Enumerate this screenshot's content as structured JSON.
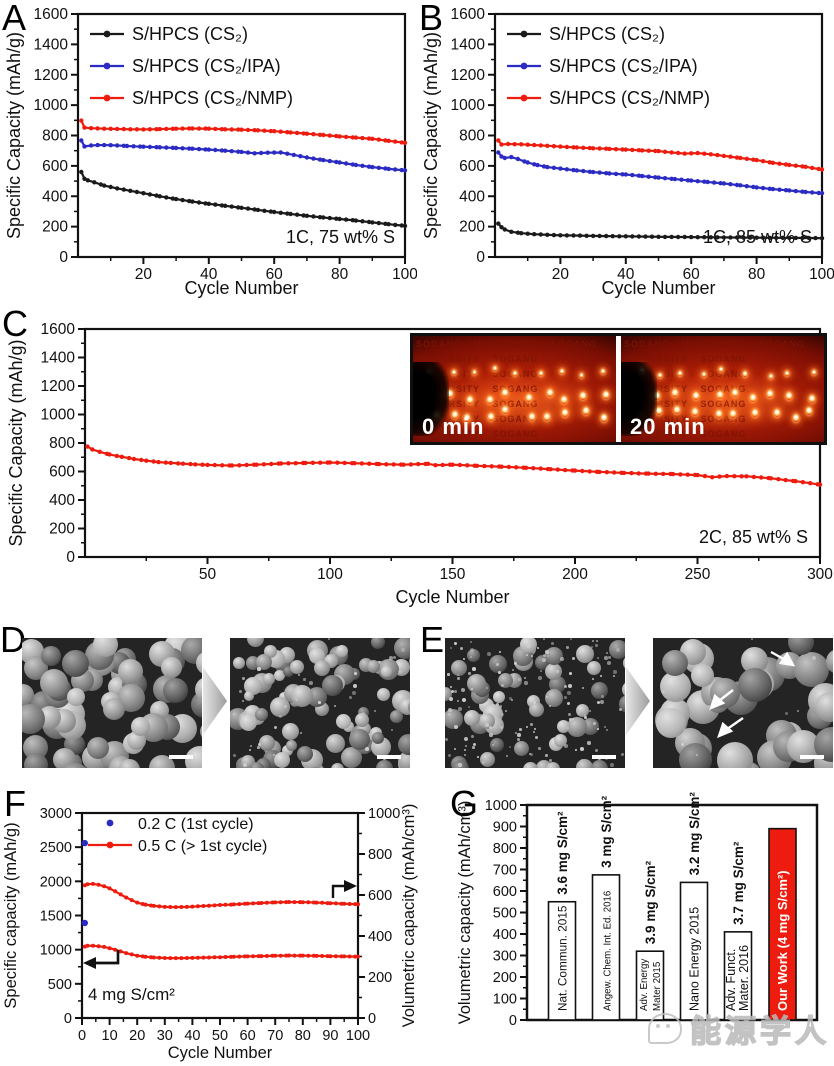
{
  "watermark": {
    "text": "能源学人"
  },
  "panels": {
    "d": {
      "label": "D"
    },
    "e": {
      "label": "E"
    }
  },
  "chart_data": [
    {
      "id": "A",
      "type": "line",
      "xlabel": "Cycle Number",
      "ylabel": "Specific Capacity (mAh/g)",
      "xlim": [
        0,
        100
      ],
      "ylim": [
        0,
        1600
      ],
      "xticks": [
        20,
        40,
        60,
        80,
        100
      ],
      "xminor": 10,
      "yticks": [
        0,
        200,
        400,
        600,
        800,
        1000,
        1200,
        1400,
        1600
      ],
      "yminor": 100,
      "annotation": "1C, 75 wt% S",
      "legend": [
        "S/HPCS (CS₂)",
        "S/HPCS (CS₂/IPA)",
        "S/HPCS (CS₂/NMP)"
      ],
      "series": [
        {
          "name": "S/HPCS (CS₂)",
          "color": "#1a1a1a",
          "x": [
            1,
            2,
            3,
            5,
            8,
            12,
            16,
            20,
            25,
            30,
            35,
            40,
            45,
            50,
            55,
            60,
            65,
            70,
            75,
            80,
            85,
            90,
            95,
            100
          ],
          "y": [
            560,
            515,
            505,
            492,
            470,
            452,
            436,
            420,
            400,
            381,
            365,
            350,
            337,
            324,
            310,
            296,
            283,
            271,
            260,
            250,
            240,
            228,
            216,
            205
          ]
        },
        {
          "name": "S/HPCS (CS₂/IPA)",
          "color": "#2b2bc4",
          "x": [
            1,
            2,
            4,
            6,
            10,
            15,
            20,
            25,
            30,
            35,
            40,
            45,
            50,
            54,
            58,
            62,
            66,
            70,
            75,
            80,
            85,
            90,
            95,
            100
          ],
          "y": [
            768,
            728,
            734,
            737,
            736,
            731,
            726,
            722,
            718,
            713,
            707,
            700,
            692,
            683,
            687,
            688,
            672,
            655,
            638,
            622,
            606,
            592,
            580,
            570
          ]
        },
        {
          "name": "S/HPCS (CS₂/NMP)",
          "color": "#ed1c0e",
          "x": [
            1,
            2,
            4,
            8,
            12,
            16,
            20,
            25,
            30,
            35,
            40,
            45,
            50,
            55,
            60,
            65,
            70,
            75,
            80,
            85,
            90,
            95,
            100
          ],
          "y": [
            898,
            852,
            848,
            845,
            843,
            841,
            840,
            842,
            845,
            846,
            845,
            841,
            838,
            834,
            828,
            820,
            812,
            803,
            794,
            786,
            778,
            765,
            752
          ]
        }
      ]
    },
    {
      "id": "B",
      "type": "line",
      "xlabel": "Cycle Number",
      "ylabel": "Specific Capacity (mAh/g)",
      "xlim": [
        0,
        100
      ],
      "ylim": [
        0,
        1600
      ],
      "xticks": [
        20,
        40,
        60,
        80,
        100
      ],
      "xminor": 10,
      "yticks": [
        0,
        200,
        400,
        600,
        800,
        1000,
        1200,
        1400,
        1600
      ],
      "yminor": 100,
      "annotation": "1C, 85 wt% S",
      "legend": [
        "S/HPCS (CS₂)",
        "S/HPCS (CS₂/IPA)",
        "S/HPCS (CS₂/NMP)"
      ],
      "series": [
        {
          "name": "S/HPCS (CS₂)",
          "color": "#1a1a1a",
          "x": [
            1,
            2,
            3,
            5,
            8,
            12,
            16,
            20,
            30,
            40,
            50,
            60,
            70,
            80,
            90,
            100
          ],
          "y": [
            220,
            196,
            181,
            166,
            157,
            150,
            146,
            143,
            139,
            136,
            133,
            131,
            129,
            127,
            126,
            124
          ]
        },
        {
          "name": "S/HPCS (CS₂/IPA)",
          "color": "#2b2bc4",
          "x": [
            1,
            2,
            3,
            5,
            7,
            10,
            13,
            16,
            20,
            25,
            30,
            35,
            40,
            45,
            50,
            55,
            60,
            65,
            70,
            75,
            80,
            85,
            90,
            95,
            100
          ],
          "y": [
            688,
            662,
            652,
            658,
            645,
            622,
            605,
            592,
            582,
            570,
            559,
            550,
            543,
            533,
            523,
            513,
            503,
            494,
            484,
            472,
            458,
            447,
            438,
            428,
            420
          ]
        },
        {
          "name": "S/HPCS (CS₂/NMP)",
          "color": "#ed1c0e",
          "x": [
            1,
            2,
            4,
            8,
            12,
            16,
            20,
            25,
            30,
            35,
            40,
            45,
            50,
            54,
            58,
            62,
            66,
            70,
            75,
            80,
            85,
            90,
            95,
            100
          ],
          "y": [
            768,
            741,
            744,
            742,
            737,
            732,
            727,
            721,
            716,
            712,
            707,
            702,
            697,
            688,
            681,
            684,
            676,
            666,
            652,
            638,
            620,
            606,
            594,
            576
          ]
        }
      ]
    },
    {
      "id": "C",
      "type": "line",
      "xlabel": "Cycle Number",
      "ylabel": "Specific Capacity (mAh/g)",
      "xlim": [
        0,
        300
      ],
      "ylim": [
        0,
        1600
      ],
      "xticks": [
        50,
        100,
        150,
        200,
        250,
        300
      ],
      "xminor": 25,
      "yticks": [
        0,
        200,
        400,
        600,
        800,
        1000,
        1200,
        1400,
        1600
      ],
      "yminor": 100,
      "annotation": "2C, 85 wt% S",
      "inset": {
        "labels": [
          "0 min",
          "20 min"
        ],
        "background_text": "Sogang University"
      },
      "series": [
        {
          "name": "S/HPCS (CS₂/NMP)",
          "color": "#ed1c0e",
          "x": [
            1,
            3,
            6,
            10,
            15,
            20,
            25,
            30,
            35,
            40,
            45,
            50,
            60,
            70,
            80,
            90,
            100,
            110,
            120,
            130,
            140,
            143,
            150,
            160,
            170,
            180,
            190,
            200,
            210,
            220,
            230,
            240,
            250,
            256,
            262,
            270,
            280,
            290,
            300
          ],
          "y": [
            775,
            755,
            738,
            720,
            703,
            688,
            676,
            666,
            660,
            655,
            650,
            646,
            642,
            648,
            656,
            660,
            663,
            658,
            652,
            648,
            654,
            644,
            648,
            640,
            634,
            626,
            616,
            606,
            597,
            590,
            585,
            582,
            575,
            560,
            568,
            566,
            552,
            532,
            508
          ]
        }
      ]
    },
    {
      "id": "F",
      "type": "line",
      "xlabel": "Cycle Number",
      "ylabel": "Specific capacity (mAh/g)",
      "ylabel_right": "Volumetric capacity (mAh/cm³)",
      "xlim": [
        0,
        100
      ],
      "ylim": [
        0,
        3000
      ],
      "ylim_right": [
        0,
        1000
      ],
      "xticks": [
        0,
        10,
        20,
        30,
        40,
        50,
        60,
        70,
        80,
        90,
        100
      ],
      "xminor": 5,
      "yticks": [
        0,
        500,
        1000,
        1500,
        2000,
        2500,
        3000
      ],
      "yminor": 250,
      "yticks_right": [
        0,
        200,
        400,
        600,
        800,
        1000
      ],
      "yminor_right": 100,
      "annotation": "4 mg S/cm²",
      "legend": [
        "0.2 C (1st cycle)",
        "0.5 C (> 1st cycle)"
      ],
      "series": [
        {
          "name": "0.2 C (1st cycle)",
          "color": "#2b2bc4",
          "axis": "left",
          "line": false,
          "x": [
            1
          ],
          "y": [
            1390
          ]
        },
        {
          "name": "0.2 C (1st cycle)",
          "color": "#2b2bc4",
          "axis": "right",
          "line": false,
          "x": [
            1
          ],
          "y": [
            853
          ]
        },
        {
          "name": "0.5 C (> 1st cycle)",
          "color": "#ed1c0e",
          "axis": "left",
          "x": [
            1,
            2,
            4,
            6,
            8,
            10,
            12,
            14,
            16,
            18,
            20,
            23,
            26,
            30,
            34,
            38,
            42,
            46,
            50,
            55,
            60,
            65,
            70,
            75,
            80,
            85,
            90,
            95,
            100
          ],
          "y": [
            1045,
            1056,
            1058,
            1050,
            1040,
            1022,
            1000,
            975,
            950,
            930,
            912,
            896,
            886,
            878,
            876,
            878,
            882,
            886,
            890,
            896,
            902,
            906,
            911,
            914,
            913,
            909,
            905,
            901,
            898
          ]
        },
        {
          "name": "0.5 C (> 1st cycle)",
          "color": "#ed1c0e",
          "axis": "right",
          "x": [
            1,
            2,
            4,
            6,
            8,
            10,
            12,
            14,
            16,
            18,
            20,
            23,
            26,
            30,
            34,
            38,
            42,
            46,
            50,
            55,
            60,
            65,
            70,
            75,
            80,
            85,
            90,
            95,
            100
          ],
          "y": [
            648,
            652,
            654,
            650,
            643,
            632,
            618,
            603,
            588,
            575,
            563,
            553,
            547,
            542,
            541,
            542,
            545,
            548,
            551,
            554,
            558,
            561,
            564,
            566,
            565,
            563,
            560,
            557,
            555
          ]
        }
      ]
    },
    {
      "id": "G",
      "type": "bar",
      "ylabel": "Volumetric capacity (mAh/cm³)",
      "ylim": [
        0,
        1000
      ],
      "yticks": [
        0,
        100,
        200,
        300,
        400,
        500,
        600,
        700,
        800,
        900,
        1000
      ],
      "yminor": 50,
      "bars": [
        {
          "journal": "Nat. Commun. 2015",
          "loading": "3.6 mg S/cm²",
          "value": 550,
          "fill": "#ffffff",
          "text": "#111111"
        },
        {
          "journal": "Angew. Chem. Int. Ed. 2016",
          "loading": "3 mg S/cm²",
          "value": 675,
          "fill": "#ffffff",
          "text": "#111111"
        },
        {
          "journal": "Adv. Energy|Mater 2015",
          "loading": "3.9 mg S/cm²",
          "value": 320,
          "fill": "#ffffff",
          "text": "#111111"
        },
        {
          "journal": "Nano Energy 2015",
          "loading": "3.2 mg S/cm²",
          "value": 640,
          "fill": "#ffffff",
          "text": "#111111"
        },
        {
          "journal": "Adv. Funct.|Mater. 2016",
          "loading": "3.7 mg S/cm²",
          "value": 410,
          "fill": "#ffffff",
          "text": "#111111"
        },
        {
          "journal": "Our Work (4 mg S/cm²)",
          "loading": "",
          "value": 890,
          "fill": "#ed1c0e",
          "text": "#ffffff",
          "bold": true
        }
      ]
    }
  ]
}
